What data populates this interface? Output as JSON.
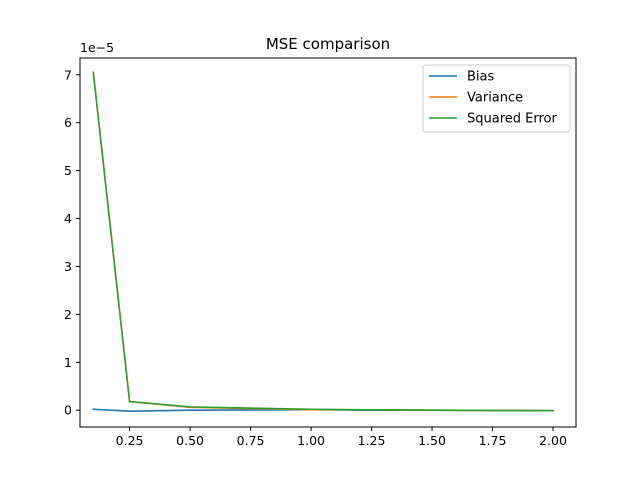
{
  "chart_data": {
    "type": "line",
    "title": "MSE comparison",
    "xlabel": "",
    "ylabel": "",
    "y_offset_label": "1e−5",
    "xlim": [
      0.045,
      2.095
    ],
    "ylim": [
      -0.35,
      7.35
    ],
    "x_ticks": [
      0.25,
      0.5,
      0.75,
      1.0,
      1.25,
      1.5,
      1.75,
      2.0
    ],
    "x_tick_labels": [
      "0.25",
      "0.50",
      "0.75",
      "1.00",
      "1.25",
      "1.50",
      "1.75",
      "2.00"
    ],
    "y_ticks": [
      0,
      1,
      2,
      3,
      4,
      5,
      6,
      7
    ],
    "y_tick_labels": [
      "0",
      "1",
      "2",
      "3",
      "4",
      "5",
      "6",
      "7"
    ],
    "grid": false,
    "legend_position": "top-right",
    "x": [
      0.1,
      0.25,
      0.5,
      1.0,
      1.25,
      1.5,
      2.0
    ],
    "series": [
      {
        "name": "Bias",
        "color": "#1f77b4",
        "values": [
          0.02,
          -0.02,
          0.0,
          0.01,
          0.0,
          0.0,
          -0.01
        ]
      },
      {
        "name": "Variance",
        "color": "#ff7f0e",
        "values": [
          7.05,
          0.18,
          0.06,
          0.01,
          0.01,
          0.0,
          -0.01
        ]
      },
      {
        "name": "Squared Error",
        "color": "#2ca02c",
        "values": [
          7.05,
          0.18,
          0.07,
          0.02,
          0.01,
          0.0,
          -0.01
        ]
      }
    ]
  }
}
